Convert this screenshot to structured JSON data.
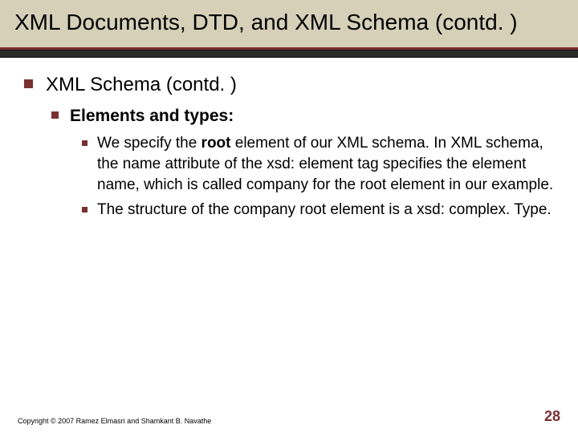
{
  "colors": {
    "title_band_bg": "#d6d0b8",
    "accent_red": "#7b2e2e",
    "divider_dark": "#2a2a2a",
    "text": "#000000",
    "background": "#ffffff"
  },
  "title": "XML Documents, DTD, and XML Schema (contd. )",
  "level1": {
    "text": "XML Schema (contd. )"
  },
  "level2": {
    "prefix": "Elements and types:",
    "prefix_bold": true
  },
  "level3": [
    {
      "before_bold": "We specify the ",
      "bold": "root",
      "after_bold": " element of our XML schema. In XML schema, the name attribute of the xsd: element tag specifies the element name, which is called company for the root element in our example."
    },
    {
      "before_bold": "The structure of the company root element is a xsd: complex. Type.",
      "bold": "",
      "after_bold": ""
    }
  ],
  "footer": {
    "copyright": "Copyright © 2007 Ramez Elmasri and Shamkant B. Navathe",
    "page": "28"
  }
}
